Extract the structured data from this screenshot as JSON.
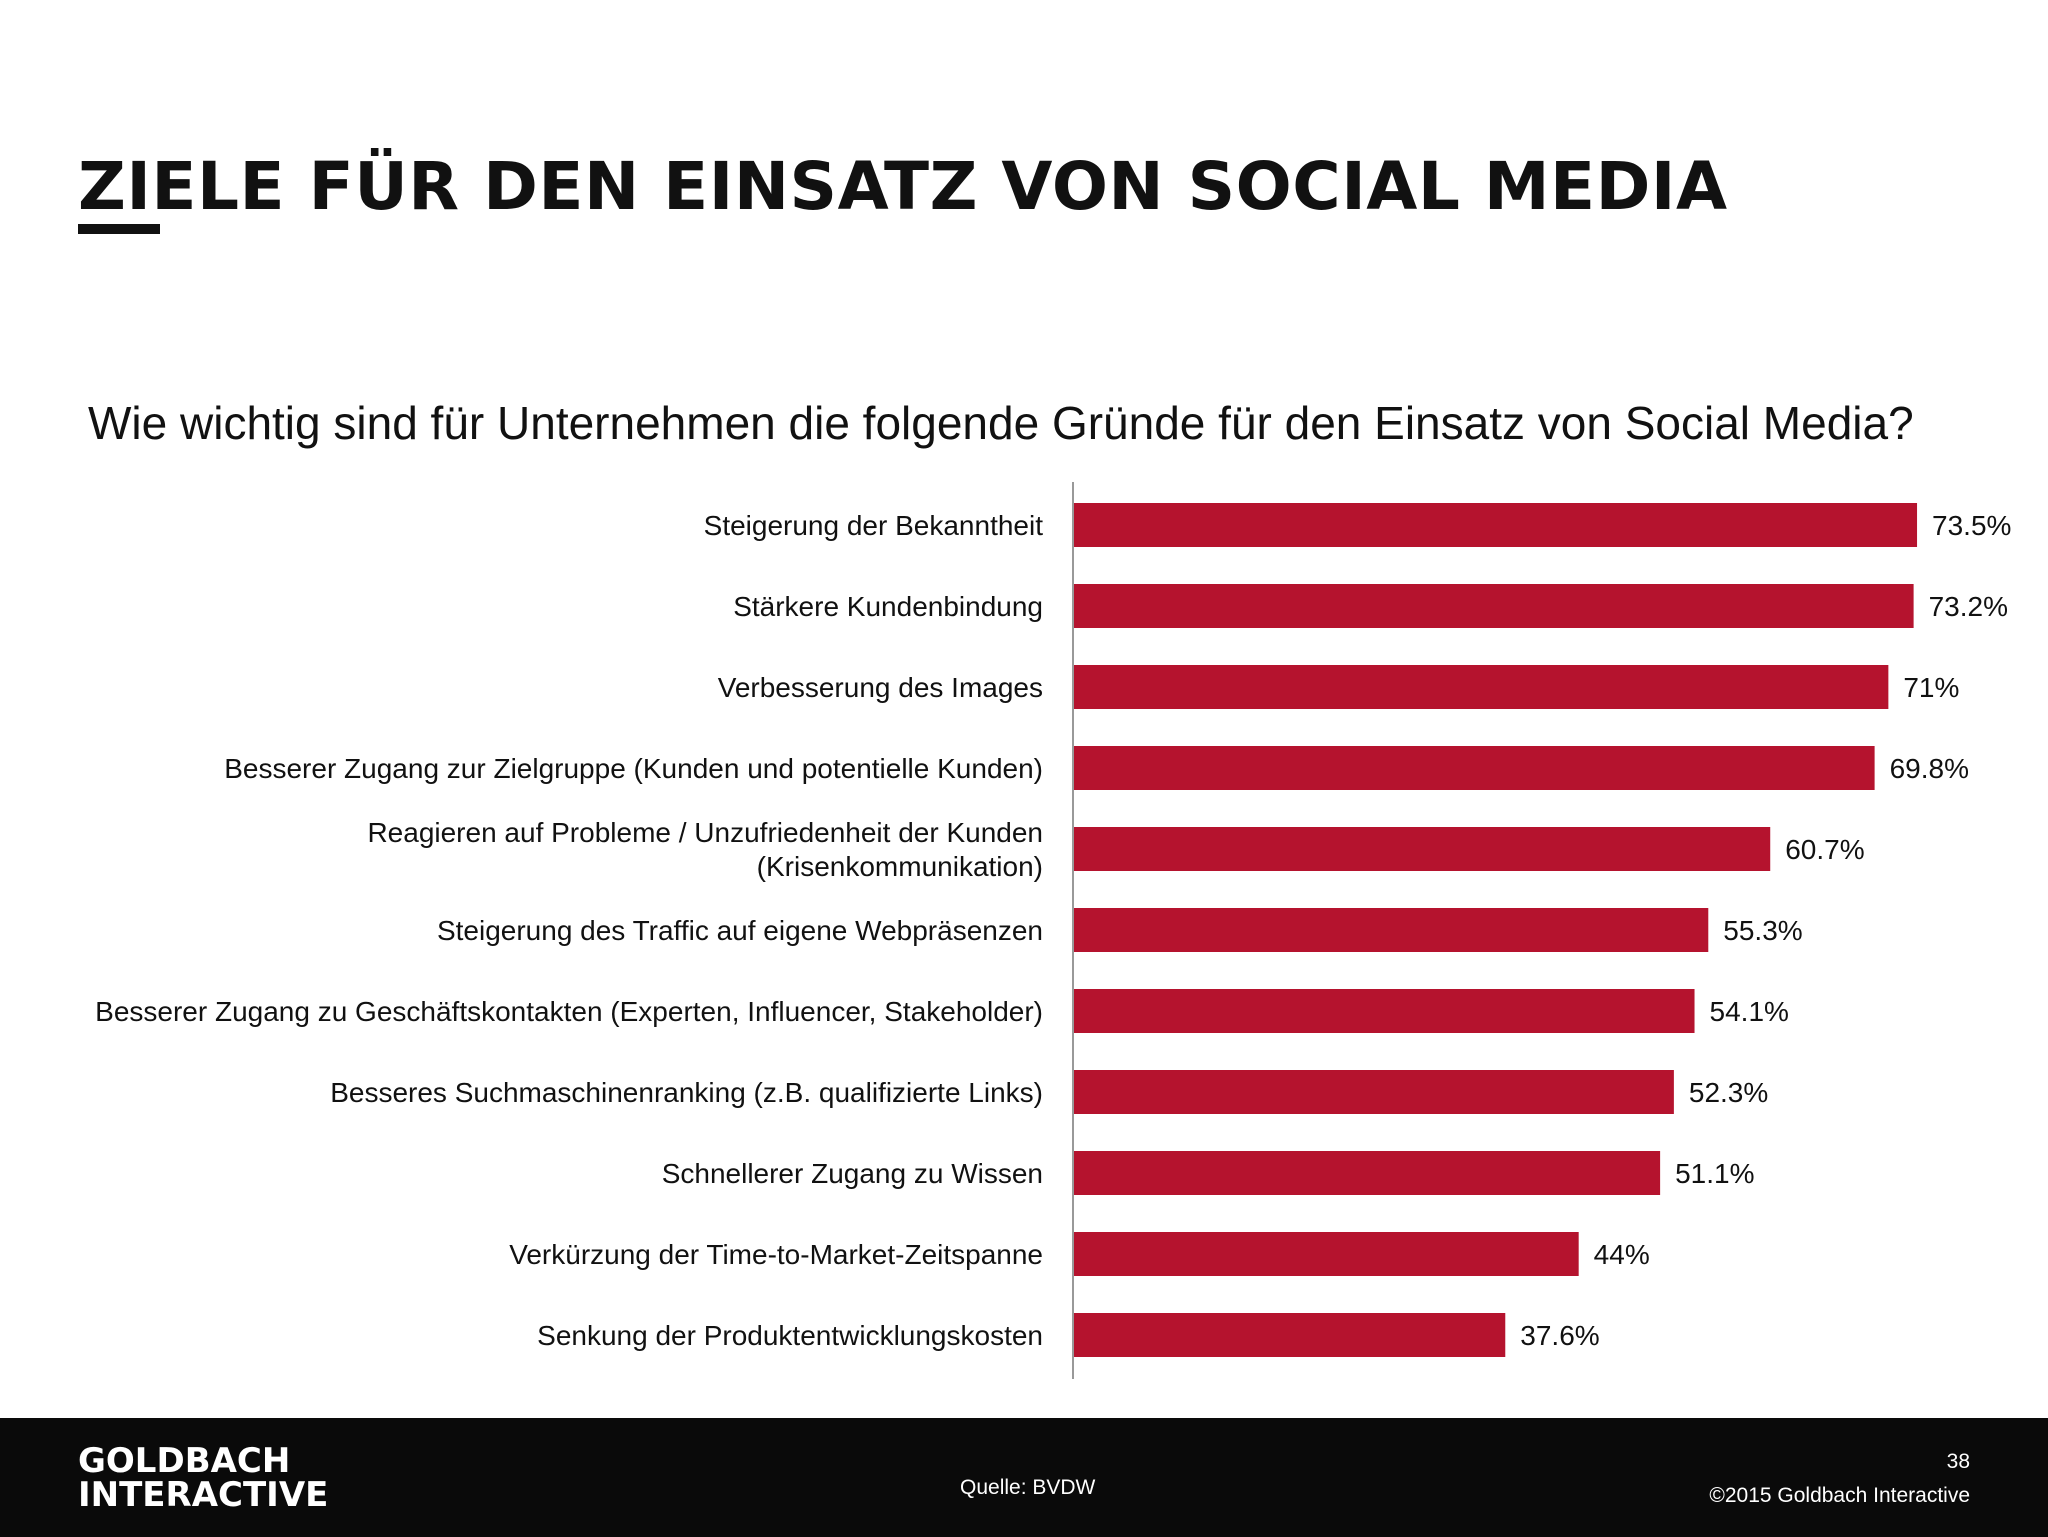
{
  "page": {
    "title": "ZIELE FÜR DEN EINSATZ VON SOCIAL MEDIA",
    "question": "Wie wichtig sind für Unternehmen die folgende Gründe für den Einsatz von Social Media?"
  },
  "footer": {
    "brand_line1": "GOLDBACH",
    "brand_line2": "INTERACTIVE",
    "source": "Quelle: BVDW",
    "page_number": "38",
    "copyright": "©2015 Goldbach Interactive"
  },
  "chart_data": {
    "type": "bar",
    "orientation": "horizontal",
    "categories": [
      [
        "Steigerung der Bekanntheit"
      ],
      [
        "Stärkere Kundenbindung"
      ],
      [
        "Verbesserung des Images"
      ],
      [
        "Besserer Zugang zur Zielgruppe (Kunden und potentielle Kunden)"
      ],
      [
        "Reagieren auf Probleme / Unzufriedenheit der Kunden",
        "(Krisenkommunikation)"
      ],
      [
        "Steigerung des Traffic auf eigene Webpräsenzen"
      ],
      [
        "Besserer Zugang zu Geschäftskontakten (Experten, Influencer, Stakeholder)"
      ],
      [
        "Besseres Suchmaschinenranking (z.B. qualifizierte Links)"
      ],
      [
        "Schnellerer Zugang zu Wissen"
      ],
      [
        "Verkürzung der Time-to-Market-Zeitspanne"
      ],
      [
        "Senkung der Produktentwicklungskosten"
      ]
    ],
    "values": [
      73.5,
      73.2,
      71,
      69.8,
      60.7,
      55.3,
      54.1,
      52.3,
      51.1,
      44,
      37.6
    ],
    "value_labels": [
      "73.5%",
      "73.2%",
      "71%",
      "69.8%",
      "60.7%",
      "55.3%",
      "54.1%",
      "52.3%",
      "51.1%",
      "44%",
      "37.6%"
    ],
    "bar_color": "#b5132e",
    "xlim": [
      0,
      100
    ],
    "grid": false,
    "legend": "none"
  }
}
